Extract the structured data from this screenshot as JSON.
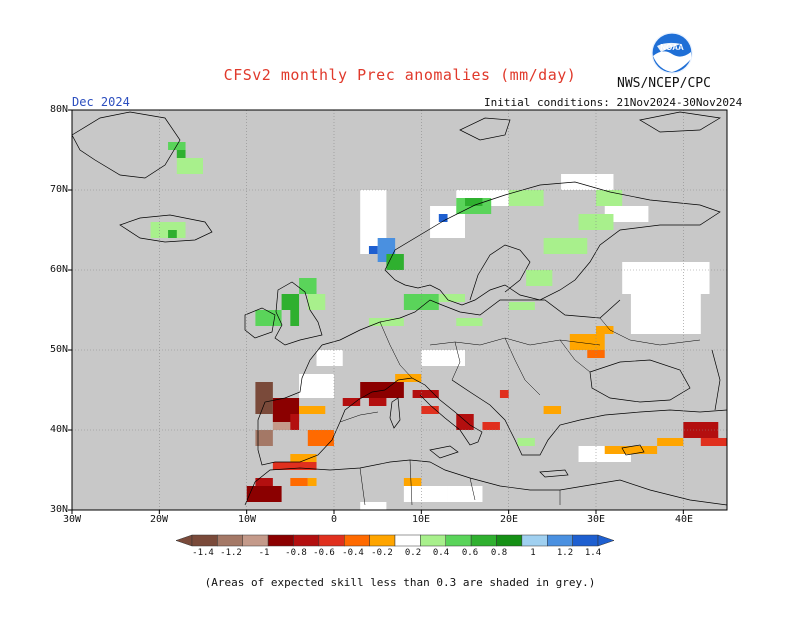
{
  "header": {
    "title": "CFSv2 monthly Prec anomalies (mm/day)",
    "agency": "NWS/NCEP/CPC",
    "logo_text": "NOAA",
    "month": "Dec 2024",
    "initial_conditions": "Initial conditions: 21Nov2024-30Nov2024"
  },
  "map": {
    "lat_range": [
      30,
      80
    ],
    "lon_range": [
      -30,
      45
    ],
    "lat_labels": [
      "80N",
      "70N",
      "60N",
      "50N",
      "40N",
      "30N"
    ],
    "lon_labels": [
      "30W",
      "20W",
      "10W",
      "0",
      "10E",
      "20E",
      "30E",
      "40E"
    ],
    "ocean_color": "#c8c8c8",
    "coast_color": "#000000"
  },
  "colorbar": {
    "labels": [
      "-1.4",
      "-1.2",
      "-1",
      "-0.8",
      "-0.6",
      "-0.4",
      "-0.2",
      "0.2",
      "0.4",
      "0.6",
      "0.8",
      "1",
      "1.2",
      "1.4"
    ],
    "colors": [
      "#7a4a3a",
      "#a47866",
      "#c49a8a",
      "#8b0000",
      "#b30f0f",
      "#e0301e",
      "#ff6a00",
      "#ffa500",
      "#ffffff",
      "#a8f08c",
      "#5ad45a",
      "#2fb02f",
      "#159015",
      "#a0d0f0",
      "#4a90e0",
      "#1e5fd0"
    ]
  },
  "footnote": "(Areas of expected skill less than 0.3 are shaded in grey.)"
}
